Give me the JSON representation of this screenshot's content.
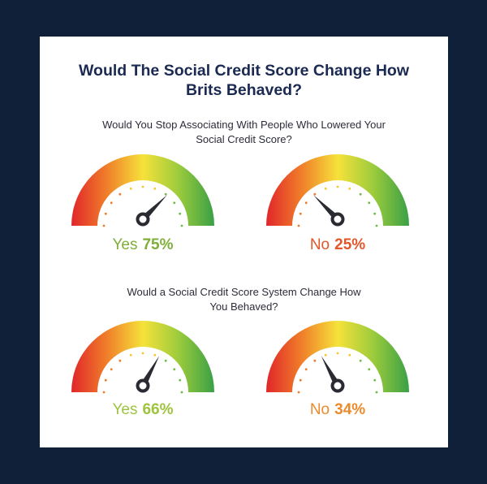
{
  "title_line1": "Would The Social Credit Score Change How",
  "title_line2": "Brits Behaved?",
  "questions": [
    {
      "text_line1": "Would You Stop Associating With People Who Lowered Your",
      "text_line2": "Social Credit Score?",
      "answers": [
        {
          "label": "Yes",
          "value_text": "75%",
          "value": 75,
          "color": "#7fae3a"
        },
        {
          "label": "No",
          "value_text": "25%",
          "value": 25,
          "color": "#e2562a"
        }
      ]
    },
    {
      "text_line1": "Would a Social Credit Score System Change How",
      "text_line2": "You Behaved?",
      "answers": [
        {
          "label": "Yes",
          "value_text": "66%",
          "value": 66,
          "color": "#9ec43e"
        },
        {
          "label": "No",
          "value_text": "34%",
          "value": 34,
          "color": "#ec8a2c"
        }
      ]
    }
  ],
  "gauge_colors": [
    "#e1262b",
    "#f07f2a",
    "#f6e23a",
    "#9ccb3c",
    "#3aa046"
  ],
  "needle_color": "#2a2a33",
  "tick_color": "#f5c531"
}
